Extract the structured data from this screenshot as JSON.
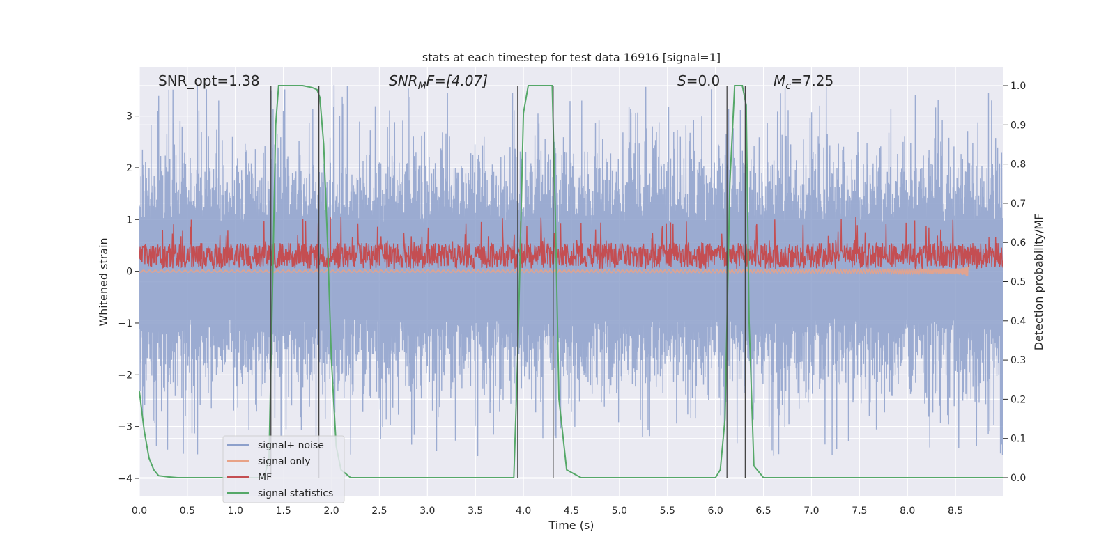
{
  "chart_data": {
    "type": "line",
    "title": "stats at each timestep for test data 16916 [signal=1]",
    "xlabel": "Time (s)",
    "ylabel": "Whitened strain",
    "y2label": "Detection probability/MF",
    "xlim": [
      0.0,
      9.0
    ],
    "ylim": [
      -4.35,
      3.95
    ],
    "y2lim": [
      -0.048,
      1.048
    ],
    "xticks": [
      "0.0",
      "0.5",
      "1.0",
      "1.5",
      "2.0",
      "2.5",
      "3.0",
      "3.5",
      "4.0",
      "4.5",
      "5.0",
      "5.5",
      "6.0",
      "6.5",
      "7.0",
      "7.5",
      "8.0",
      "8.5"
    ],
    "yticks": [
      "3",
      "2",
      "1",
      "0",
      "−1",
      "−2",
      "−3",
      "−4"
    ],
    "y2ticks": [
      "1.0",
      "0.9",
      "0.8",
      "0.7",
      "0.6",
      "0.5",
      "0.4",
      "0.3",
      "0.2",
      "0.1",
      "0.0"
    ],
    "grid": true,
    "legend_position": "lower-left",
    "annotations": {
      "snr_opt": "SNR_opt=1.38",
      "snr_mf_base": "SNR",
      "snr_mf_sub": "M",
      "snr_mf_rest": "F=[4.07]",
      "s_var": "S",
      "s_rest": "=0.0",
      "mc_var": "M",
      "mc_sub": "c",
      "mc_rest": "=7.25"
    },
    "series": [
      {
        "name": "signal+ noise",
        "color": "#8da0cb",
        "description_axis": "left",
        "envelope": {
          "typical_band": [
            -1.85,
            1.85
          ],
          "peak_range": [
            -4.0,
            3.6
          ]
        }
      },
      {
        "name": "signal only",
        "color": "#e8a287",
        "description_axis": "left",
        "chirp_end": 8.65,
        "chirp_max_amplitude": 0.12
      },
      {
        "name": "MF",
        "color": "#c44e52",
        "description_axis": "left",
        "envelope": {
          "band": [
            0.0,
            0.55
          ],
          "peak": 1.05
        }
      },
      {
        "name": "signal statistics",
        "color": "#55a868",
        "axis": "right",
        "x": [
          0.0,
          0.05,
          0.1,
          0.15,
          0.2,
          0.3,
          0.4,
          0.6,
          0.8,
          1.0,
          1.2,
          1.3,
          1.35,
          1.38,
          1.42,
          1.45,
          1.5,
          1.6,
          1.7,
          1.8,
          1.85,
          1.88,
          1.92,
          1.96,
          2.0,
          2.05,
          2.1,
          2.2,
          2.5,
          3.0,
          3.5,
          3.9,
          3.94,
          4.0,
          4.05,
          4.1,
          4.2,
          4.3,
          4.33,
          4.37,
          4.45,
          4.6,
          5.0,
          5.5,
          6.0,
          6.05,
          6.1,
          6.15,
          6.2,
          6.22,
          6.28,
          6.32,
          6.35,
          6.4,
          6.5,
          7.0,
          8.0,
          9.0
        ],
        "y": [
          0.22,
          0.12,
          0.05,
          0.02,
          0.005,
          0.002,
          0.0,
          0.0,
          0.0,
          0.0,
          0.0,
          0.0,
          0.05,
          0.4,
          0.9,
          1.0,
          1.0,
          1.0,
          1.0,
          0.995,
          0.99,
          0.97,
          0.85,
          0.6,
          0.3,
          0.08,
          0.02,
          0.0,
          0.0,
          0.0,
          0.0,
          0.0,
          0.3,
          0.93,
          1.0,
          1.0,
          1.0,
          1.0,
          0.7,
          0.2,
          0.02,
          0.0,
          0.0,
          0.0,
          0.0,
          0.02,
          0.15,
          0.75,
          1.0,
          1.0,
          1.0,
          0.95,
          0.4,
          0.03,
          0.0,
          0.0,
          0.0,
          0.0
        ]
      }
    ],
    "vertical_markers": [
      1.37,
      1.87,
      3.94,
      4.31,
      6.12,
      6.31
    ]
  }
}
